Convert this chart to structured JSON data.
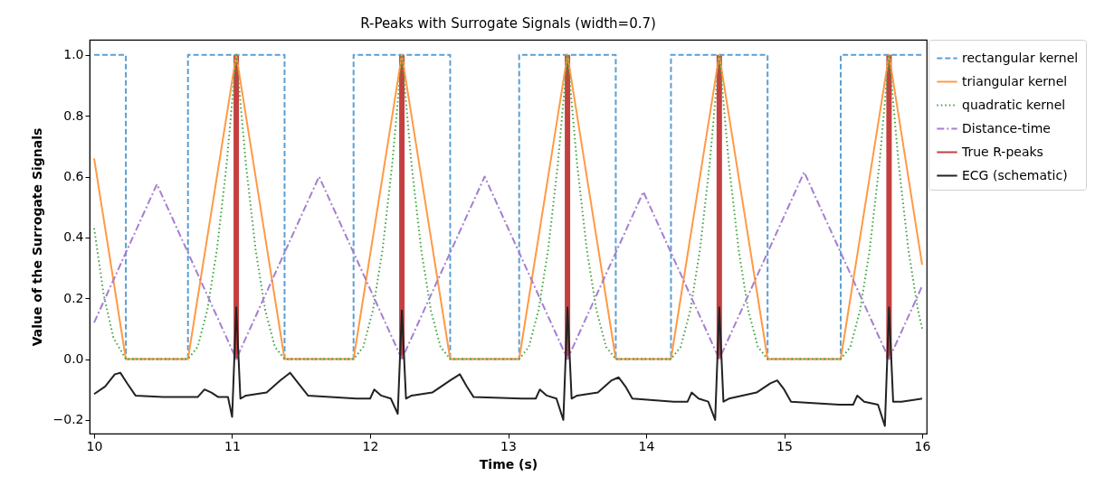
{
  "chart_data": {
    "type": "line",
    "title": "R-Peaks with Surrogate Signals (width=0.7)",
    "xlabel": "Time (s)",
    "ylabel": "Value of the Surrogate Signals",
    "xlim": [
      10,
      16
    ],
    "xticks": [
      10,
      11,
      12,
      13,
      14,
      15,
      16
    ],
    "ylim": [
      -0.245,
      1.05
    ],
    "yticks": [
      {
        "value": -0.2,
        "label": "−0.2"
      },
      {
        "value": 0,
        "label": "0.0"
      },
      {
        "value": 0.2,
        "label": "0.2"
      },
      {
        "value": 0.4,
        "label": "0.4"
      },
      {
        "value": 0.6,
        "label": "0.6"
      },
      {
        "value": 0.8,
        "label": "0.8"
      },
      {
        "value": 1,
        "label": "1.0"
      }
    ],
    "grid": false,
    "legend": "right",
    "series": [
      {
        "name": "rectangular kernel",
        "line_style": "dashed",
        "color": "#5a9fd4",
        "x": [
          10,
          10.23,
          10.23,
          10.68,
          10.68,
          11.38,
          11.38,
          11.88,
          11.88,
          12.58,
          12.58,
          13.08,
          13.08,
          13.78,
          13.78,
          14.18,
          14.18,
          14.88,
          14.88,
          15.41,
          15.41,
          16
        ],
        "values": [
          1,
          1,
          0,
          0,
          1,
          1,
          0,
          0,
          1,
          1,
          0,
          0,
          1,
          1,
          0,
          0,
          1,
          1,
          0,
          0,
          1,
          1
        ]
      },
      {
        "name": "triangular kernel",
        "line_style": "solid",
        "color": "#ff9a45",
        "x": [
          10,
          10.23,
          10.68,
          11.03,
          11.38,
          11.88,
          12.23,
          12.58,
          13.08,
          13.43,
          13.78,
          14.18,
          14.53,
          14.88,
          15.41,
          15.76,
          16
        ],
        "values": [
          0.66,
          0,
          0,
          1,
          0,
          0,
          1,
          0,
          0,
          1,
          0,
          0,
          1,
          0,
          0,
          1,
          0.31
        ]
      },
      {
        "name": "quadratic kernel",
        "line_style": "dotted",
        "color": "#3fa33f",
        "x": [
          10,
          10.07,
          10.14,
          10.23,
          10.68,
          10.75,
          10.82,
          10.89,
          10.96,
          11.03,
          11.1,
          11.17,
          11.24,
          11.31,
          11.38,
          11.88,
          11.95,
          12.02,
          12.09,
          12.16,
          12.23,
          12.3,
          12.37,
          12.44,
          12.51,
          12.58,
          13.08,
          13.15,
          13.22,
          13.29,
          13.36,
          13.43,
          13.5,
          13.57,
          13.64,
          13.71,
          13.78,
          14.18,
          14.25,
          14.32,
          14.39,
          14.46,
          14.53,
          14.6,
          14.67,
          14.74,
          14.81,
          14.88,
          15.41,
          15.48,
          15.55,
          15.62,
          15.69,
          15.76,
          15.83,
          15.9,
          15.97,
          16
        ],
        "values": [
          0.43,
          0.21,
          0.07,
          0,
          0,
          0.04,
          0.16,
          0.36,
          0.64,
          1,
          0.64,
          0.36,
          0.16,
          0.04,
          0,
          0,
          0.04,
          0.16,
          0.36,
          0.64,
          1,
          0.64,
          0.36,
          0.16,
          0.04,
          0,
          0,
          0.04,
          0.16,
          0.36,
          0.64,
          1,
          0.64,
          0.36,
          0.16,
          0.04,
          0,
          0,
          0.04,
          0.16,
          0.36,
          0.64,
          1,
          0.64,
          0.36,
          0.16,
          0.04,
          0,
          0,
          0.04,
          0.16,
          0.36,
          0.64,
          1,
          0.64,
          0.36,
          0.16,
          0.1
        ]
      },
      {
        "name": "Distance-time",
        "line_style": "dashdot",
        "color": "#a57fd0",
        "x": [
          10,
          10.455,
          11.03,
          11.63,
          12.23,
          12.83,
          13.43,
          13.98,
          14.53,
          15.145,
          15.76,
          16
        ],
        "values": [
          0.12,
          0.575,
          0,
          0.6,
          0,
          0.6,
          0,
          0.55,
          0,
          0.615,
          0,
          0.24
        ]
      },
      {
        "name": "True R-peaks",
        "type": "bar",
        "color": "#c44040",
        "x": [
          11.03,
          12.23,
          13.43,
          14.53,
          15.76
        ],
        "values": [
          1,
          1,
          1,
          1,
          1
        ]
      },
      {
        "name": "ECG (schematic)",
        "line_style": "solid",
        "color": "#222222",
        "x": [
          10,
          10.08,
          10.15,
          10.19,
          10.24,
          10.3,
          10.5,
          10.75,
          10.8,
          10.85,
          10.9,
          10.97,
          11.0,
          11.03,
          11.06,
          11.1,
          11.25,
          11.35,
          11.42,
          11.48,
          11.55,
          11.9,
          12.0,
          12.03,
          12.08,
          12.15,
          12.2,
          12.23,
          12.26,
          12.3,
          12.45,
          12.58,
          12.65,
          12.7,
          12.75,
          13.1,
          13.2,
          13.23,
          13.28,
          13.35,
          13.4,
          13.43,
          13.46,
          13.5,
          13.65,
          13.75,
          13.8,
          13.85,
          13.9,
          14.2,
          14.3,
          14.33,
          14.38,
          14.45,
          14.5,
          14.53,
          14.56,
          14.6,
          14.8,
          14.9,
          14.95,
          15.0,
          15.05,
          15.4,
          15.5,
          15.53,
          15.58,
          15.68,
          15.73,
          15.76,
          15.79,
          15.85,
          16
        ],
        "values": [
          -0.115,
          -0.09,
          -0.05,
          -0.045,
          -0.08,
          -0.12,
          -0.125,
          -0.125,
          -0.1,
          -0.11,
          -0.125,
          -0.125,
          -0.19,
          0.17,
          -0.13,
          -0.12,
          -0.11,
          -0.07,
          -0.045,
          -0.08,
          -0.12,
          -0.13,
          -0.13,
          -0.1,
          -0.12,
          -0.13,
          -0.18,
          0.16,
          -0.13,
          -0.12,
          -0.11,
          -0.07,
          -0.05,
          -0.09,
          -0.125,
          -0.13,
          -0.13,
          -0.1,
          -0.12,
          -0.13,
          -0.2,
          0.17,
          -0.13,
          -0.12,
          -0.11,
          -0.07,
          -0.06,
          -0.09,
          -0.13,
          -0.14,
          -0.14,
          -0.11,
          -0.13,
          -0.14,
          -0.2,
          0.17,
          -0.14,
          -0.13,
          -0.11,
          -0.08,
          -0.07,
          -0.1,
          -0.14,
          -0.15,
          -0.15,
          -0.12,
          -0.14,
          -0.15,
          -0.22,
          0.17,
          -0.14,
          -0.14,
          -0.13
        ]
      }
    ]
  }
}
